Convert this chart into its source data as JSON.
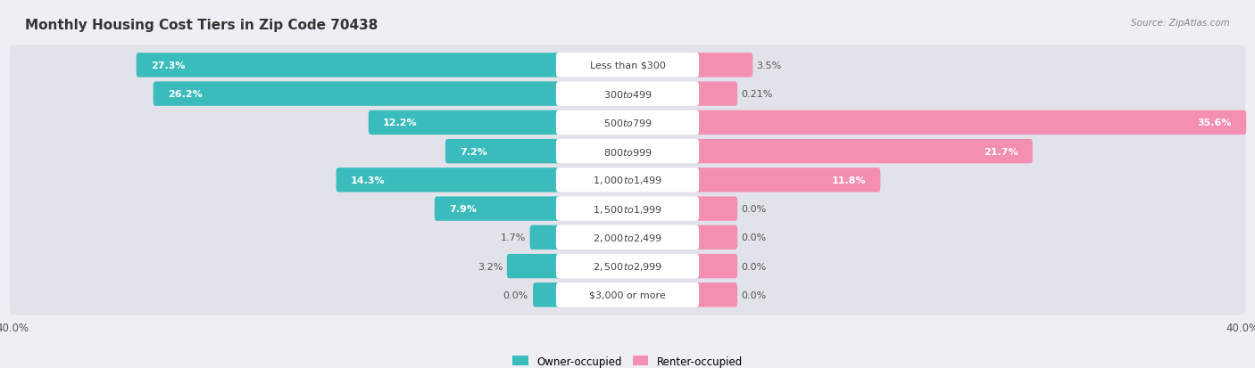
{
  "title": "Monthly Housing Cost Tiers in Zip Code 70438",
  "source": "Source: ZipAtlas.com",
  "categories": [
    "Less than $300",
    "$300 to $499",
    "$500 to $799",
    "$800 to $999",
    "$1,000 to $1,499",
    "$1,500 to $1,999",
    "$2,000 to $2,499",
    "$2,500 to $2,999",
    "$3,000 or more"
  ],
  "owner_values": [
    27.3,
    26.2,
    12.2,
    7.2,
    14.3,
    7.9,
    1.7,
    3.2,
    0.0
  ],
  "renter_values": [
    3.5,
    0.21,
    35.6,
    21.7,
    11.8,
    0.0,
    0.0,
    0.0,
    0.0
  ],
  "owner_color": "#3BBCBC",
  "renter_color": "#F48FB1",
  "renter_color_light": "#F9C0D4",
  "owner_label": "Owner-occupied",
  "renter_label": "Renter-occupied",
  "axis_max": 40.0,
  "background_color": "#eeeef4",
  "row_bg_color": "#e2e2ea",
  "label_pill_color": "#ffffff",
  "title_fontsize": 11,
  "label_fontsize": 8,
  "bar_label_fontsize": 8,
  "axis_label_fontsize": 8.5,
  "min_renter_display": 2.5,
  "min_owner_display": 2.5
}
